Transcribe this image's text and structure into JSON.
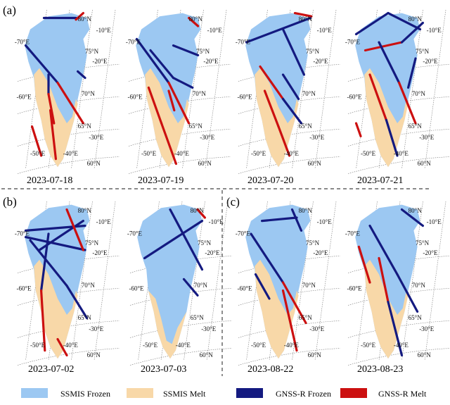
{
  "colors": {
    "ssmis_frozen": "#9cc8f2",
    "ssmis_melt": "#f8d8a8",
    "gnss_frozen": "#141a80",
    "gnss_melt": "#cc1010",
    "graticule": "#777777",
    "divider": "#444444"
  },
  "panel_labels": [
    "(a)",
    "(b)",
    "(c)"
  ],
  "dates": [
    "2023-07-18",
    "2023-07-19",
    "2023-07-20",
    "2023-07-21",
    "2023-07-02",
    "2023-07-03",
    "2023-08-22",
    "2023-08-23"
  ],
  "axis_labels": {
    "lon_w70": "-70°E",
    "lon_w60": "-60°E",
    "lon_w50": "-50°E",
    "lon_w40": "-40°E",
    "lon_w30": "-30°E",
    "lon_w20": "-20°E",
    "lon_w10": "-10°E",
    "lat_80": "80°N",
    "lat_75": "75°N",
    "lat_70": "70°N",
    "lat_65": "65°N",
    "lat_60": "60°N"
  },
  "legend": [
    {
      "label": "SSMIS Frozen",
      "color": "#9cc8f2"
    },
    {
      "label": "SSMIS Melt",
      "color": "#f8d8a8"
    },
    {
      "label": "GNSS-R Frozen",
      "color": "#141a80"
    },
    {
      "label": "GNSS-R Melt",
      "color": "#cc1010"
    }
  ],
  "maps": [
    {
      "date": "2023-07-18",
      "melt": "wide",
      "tracks": [
        {
          "pts": [
            [
              0.25,
              0.05
            ],
            [
              0.6,
              0.05
            ]
          ],
          "seg": [
            "f"
          ]
        },
        {
          "pts": [
            [
              0.05,
              0.22
            ],
            [
              0.4,
              0.45
            ],
            [
              0.68,
              0.7
            ]
          ],
          "seg": [
            "f",
            "r"
          ]
        },
        {
          "pts": [
            [
              0.3,
              0.4
            ],
            [
              0.3,
              0.52
            ],
            [
              0.36,
              0.7
            ]
          ],
          "seg": [
            "f",
            "r"
          ]
        },
        {
          "pts": [
            [
              0.32,
              0.62
            ],
            [
              0.38,
              0.92
            ]
          ],
          "seg": [
            "r"
          ]
        },
        {
          "pts": [
            [
              0.12,
              0.72
            ],
            [
              0.22,
              0.9
            ]
          ],
          "seg": [
            "r"
          ]
        },
        {
          "pts": [
            [
              0.62,
              0.38
            ],
            [
              0.7,
              0.42
            ]
          ],
          "seg": [
            "f"
          ]
        },
        {
          "pts": [
            [
              0.6,
              0.06
            ],
            [
              0.68,
              0.02
            ]
          ],
          "seg": [
            "r"
          ]
        }
      ]
    },
    {
      "date": "2023-07-19",
      "melt": "wide",
      "tracks": [
        {
          "pts": [
            [
              0.05,
              0.18
            ],
            [
              0.4,
              0.45
            ],
            [
              0.62,
              0.7
            ]
          ],
          "seg": [
            "f",
            "r"
          ]
        },
        {
          "pts": [
            [
              0.2,
              0.25
            ],
            [
              0.45,
              0.42
            ],
            [
              0.66,
              0.48
            ]
          ],
          "seg": [
            "f",
            "f"
          ]
        },
        {
          "pts": [
            [
              0.45,
              0.22
            ],
            [
              0.72,
              0.28
            ]
          ],
          "seg": [
            "f"
          ]
        },
        {
          "pts": [
            [
              0.18,
              0.48
            ],
            [
              0.32,
              0.7
            ],
            [
              0.48,
              0.95
            ]
          ],
          "seg": [
            "r",
            "r"
          ]
        },
        {
          "pts": [
            [
              0.4,
              0.5
            ],
            [
              0.46,
              0.62
            ]
          ],
          "seg": [
            "r"
          ]
        },
        {
          "pts": [
            [
              0.62,
              0.05
            ],
            [
              0.72,
              0.1
            ]
          ],
          "seg": [
            "r"
          ]
        }
      ]
    },
    {
      "date": "2023-07-20",
      "melt": "wide",
      "tracks": [
        {
          "pts": [
            [
              0.05,
              0.2
            ],
            [
              0.75,
              0.05
            ]
          ],
          "seg": [
            "f"
          ]
        },
        {
          "pts": [
            [
              0.45,
              0.12
            ],
            [
              0.68,
              0.4
            ]
          ],
          "seg": [
            "f"
          ]
        },
        {
          "pts": [
            [
              0.2,
              0.35
            ],
            [
              0.45,
              0.55
            ],
            [
              0.65,
              0.7
            ]
          ],
          "seg": [
            "r",
            "f"
          ]
        },
        {
          "pts": [
            [
              0.25,
              0.5
            ],
            [
              0.4,
              0.72
            ],
            [
              0.52,
              0.9
            ]
          ],
          "seg": [
            "r",
            "r"
          ]
        },
        {
          "pts": [
            [
              0.45,
              0.4
            ],
            [
              0.62,
              0.55
            ]
          ],
          "seg": [
            "f"
          ]
        },
        {
          "pts": [
            [
              0.58,
              0.02
            ],
            [
              0.76,
              0.04
            ]
          ],
          "seg": [
            "r"
          ]
        }
      ]
    },
    {
      "date": "2023-07-21",
      "melt": "wide",
      "tracks": [
        {
          "pts": [
            [
              0.05,
              0.15
            ],
            [
              0.4,
              0.02
            ],
            [
              0.75,
              0.12
            ]
          ],
          "seg": [
            "f",
            "f"
          ]
        },
        {
          "pts": [
            [
              0.15,
              0.25
            ],
            [
              0.55,
              0.2
            ],
            [
              0.78,
              0.08
            ]
          ],
          "seg": [
            "r",
            "f"
          ]
        },
        {
          "pts": [
            [
              0.3,
              0.2
            ],
            [
              0.52,
              0.45
            ],
            [
              0.7,
              0.7
            ]
          ],
          "seg": [
            "f",
            "r"
          ]
        },
        {
          "pts": [
            [
              0.2,
              0.4
            ],
            [
              0.38,
              0.68
            ],
            [
              0.5,
              0.9
            ]
          ],
          "seg": [
            "r",
            "f"
          ]
        },
        {
          "pts": [
            [
              0.7,
              0.3
            ],
            [
              0.62,
              0.48
            ]
          ],
          "seg": [
            "f"
          ]
        },
        {
          "pts": [
            [
              0.05,
              0.7
            ],
            [
              0.1,
              0.78
            ]
          ],
          "seg": [
            "r"
          ]
        }
      ]
    },
    {
      "date": "2023-07-02",
      "melt": "wide",
      "tracks": [
        {
          "pts": [
            [
              0.05,
              0.18
            ],
            [
              0.7,
              0.15
            ]
          ],
          "seg": [
            "f"
          ]
        },
        {
          "pts": [
            [
              0.05,
              0.22
            ],
            [
              0.7,
              0.3
            ]
          ],
          "seg": [
            "f"
          ]
        },
        {
          "pts": [
            [
              0.2,
              0.3
            ],
            [
              0.68,
              0.12
            ]
          ],
          "seg": [
            "f"
          ]
        },
        {
          "pts": [
            [
              0.1,
              0.24
            ],
            [
              0.5,
              0.52
            ],
            [
              0.72,
              0.72
            ]
          ],
          "seg": [
            "f",
            "f"
          ]
        },
        {
          "pts": [
            [
              0.3,
              0.2
            ],
            [
              0.22,
              0.55
            ],
            [
              0.26,
              0.92
            ]
          ],
          "seg": [
            "f",
            "r"
          ]
        },
        {
          "pts": [
            [
              0.5,
              0.05
            ],
            [
              0.68,
              0.3
            ]
          ],
          "seg": [
            "r"
          ]
        },
        {
          "pts": [
            [
              0.4,
              0.85
            ],
            [
              0.5,
              0.95
            ]
          ],
          "seg": [
            "r"
          ]
        }
      ]
    },
    {
      "date": "2023-07-03",
      "melt": "narrow",
      "tracks": [
        {
          "pts": [
            [
              0.12,
              0.35
            ],
            [
              0.75,
              0.12
            ]
          ],
          "seg": [
            "f"
          ]
        },
        {
          "pts": [
            [
              0.4,
              0.05
            ],
            [
              0.75,
              0.42
            ]
          ],
          "seg": [
            "f"
          ]
        },
        {
          "pts": [
            [
              0.55,
              0.48
            ],
            [
              0.7,
              0.58
            ]
          ],
          "seg": [
            "f"
          ]
        },
        {
          "pts": [
            [
              0.7,
              0.05
            ],
            [
              0.78,
              0.1
            ]
          ],
          "seg": [
            "r"
          ]
        }
      ]
    },
    {
      "date": "2023-08-22",
      "melt": "wide",
      "tracks": [
        {
          "pts": [
            [
              0.22,
              0.12
            ],
            [
              0.6,
              0.1
            ]
          ],
          "seg": [
            "f"
          ]
        },
        {
          "pts": [
            [
              0.1,
              0.2
            ],
            [
              0.45,
              0.5
            ],
            [
              0.7,
              0.75
            ]
          ],
          "seg": [
            "f",
            "r"
          ]
        },
        {
          "pts": [
            [
              0.45,
              0.55
            ],
            [
              0.6,
              0.92
            ]
          ],
          "seg": [
            "r"
          ]
        },
        {
          "pts": [
            [
              0.15,
              0.45
            ],
            [
              0.3,
              0.6
            ]
          ],
          "seg": [
            "f"
          ]
        },
        {
          "pts": [
            [
              0.55,
              0.05
            ],
            [
              0.65,
              0.18
            ]
          ],
          "seg": [
            "f"
          ]
        }
      ]
    },
    {
      "date": "2023-08-23",
      "melt": "wide",
      "tracks": [
        {
          "pts": [
            [
              0.2,
              0.15
            ],
            [
              0.5,
              0.45
            ],
            [
              0.72,
              0.68
            ]
          ],
          "seg": [
            "f",
            "f"
          ]
        },
        {
          "pts": [
            [
              0.3,
              0.35
            ],
            [
              0.4,
              0.62
            ],
            [
              0.55,
              0.95
            ]
          ],
          "seg": [
            "r",
            "f"
          ]
        },
        {
          "pts": [
            [
              0.55,
              0.05
            ],
            [
              0.78,
              0.15
            ]
          ],
          "seg": [
            "f"
          ]
        },
        {
          "pts": [
            [
              0.08,
              0.28
            ],
            [
              0.2,
              0.5
            ]
          ],
          "seg": [
            "r"
          ]
        }
      ]
    }
  ]
}
